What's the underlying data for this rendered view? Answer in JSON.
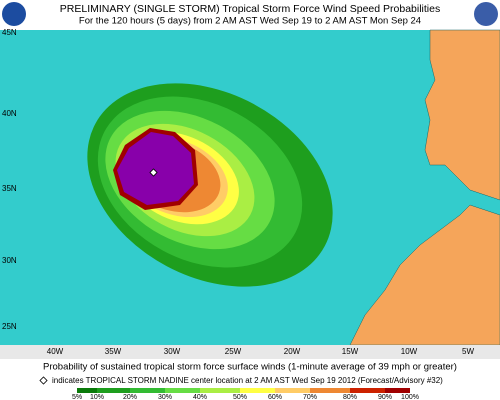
{
  "header": {
    "title": "PRELIMINARY (SINGLE STORM) Tropical Storm Force Wind Speed Probabilities",
    "subtitle": "For the 120 hours (5 days) from 2 AM AST Wed Sep 19 to 2 AM AST Mon Sep 24"
  },
  "map": {
    "lat_labels": [
      "45N",
      "40N",
      "35N",
      "30N",
      "25N"
    ],
    "lon_labels": [
      "40W",
      "35W",
      "30W",
      "25W",
      "20W",
      "15W",
      "10W",
      "5W"
    ]
  },
  "caption": {
    "line1": "Probability of sustained tropical storm force surface winds (1-minute average of 39 mph or greater)",
    "line2": "indicates TROPICAL STORM NADINE center location at 2 AM AST Wed Sep 19 2012 (Forecast/Advisory #32)"
  },
  "legend": {
    "labels": [
      "5%",
      "10%",
      "20%",
      "30%",
      "40%",
      "50%",
      "60%",
      "70%",
      "80%",
      "90%",
      "100%"
    ]
  }
}
